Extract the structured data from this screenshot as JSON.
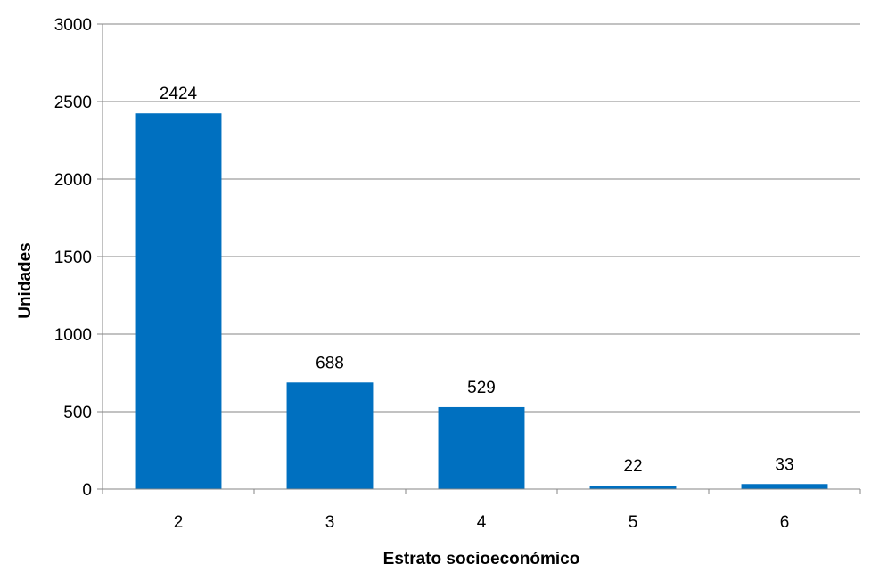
{
  "chart_data": {
    "type": "bar",
    "categories": [
      "2",
      "3",
      "4",
      "5",
      "6"
    ],
    "values": [
      2424,
      688,
      529,
      22,
      33
    ],
    "data_labels": [
      "2424",
      "688",
      "529",
      "22",
      "33"
    ],
    "title": "",
    "xlabel": "Estrato socioeconómico",
    "ylabel": "Unidades",
    "ylim": [
      0,
      3000
    ],
    "yticks": [
      0,
      500,
      1000,
      1500,
      2000,
      2500,
      3000
    ],
    "ytick_labels": [
      "0",
      "500",
      "1000",
      "1500",
      "2000",
      "2500",
      "3000"
    ],
    "grid": true,
    "legend": "none",
    "colors": {
      "bar": "#0070C0",
      "grid": "#868686",
      "axis": "#868686"
    }
  }
}
